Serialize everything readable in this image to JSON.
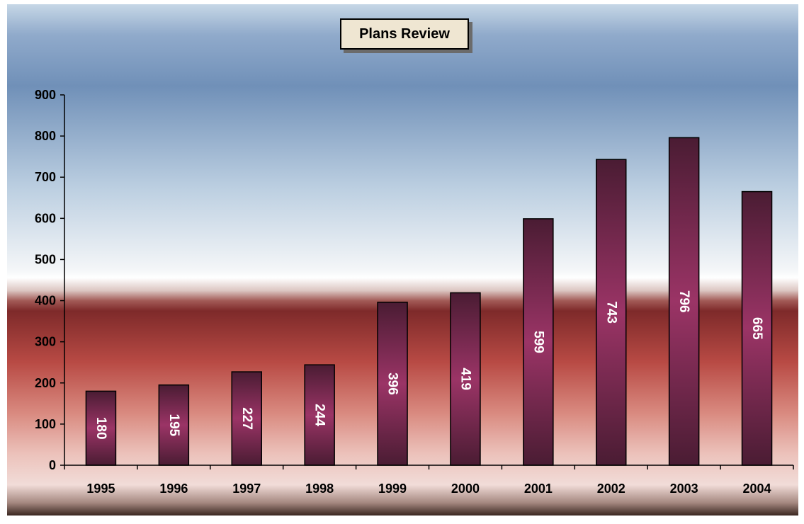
{
  "chart_data": {
    "type": "bar",
    "title": "Plans Review",
    "xlabel": "",
    "ylabel": "",
    "categories": [
      "1995",
      "1996",
      "1997",
      "1998",
      "1999",
      "2000",
      "2001",
      "2002",
      "2003",
      "2004"
    ],
    "values": [
      180,
      195,
      227,
      244,
      396,
      419,
      599,
      743,
      796,
      665
    ],
    "data_labels": [
      "180",
      "195",
      "227",
      "244",
      "396",
      "419",
      "599",
      "743",
      "796",
      "665"
    ],
    "ylim": [
      0,
      900
    ],
    "yticks": [
      0,
      100,
      200,
      300,
      400,
      500,
      600,
      700,
      800,
      900
    ],
    "ytick_labels": [
      "0",
      "100",
      "200",
      "300",
      "400",
      "500",
      "600",
      "700",
      "800",
      "900"
    ],
    "grid": false,
    "legend": "none",
    "data_label_orientation": "vertical",
    "colors": {
      "bar_dark": "#4a1c33",
      "bar_light": "#9b3466",
      "plot_top": "#7090b8",
      "plot_mid": "#f4f6f8",
      "plot_band": "#7e2a2a",
      "plot_bottom": "#f1dcd8",
      "axis": "#000000",
      "title_box": "#efe6d2"
    }
  }
}
